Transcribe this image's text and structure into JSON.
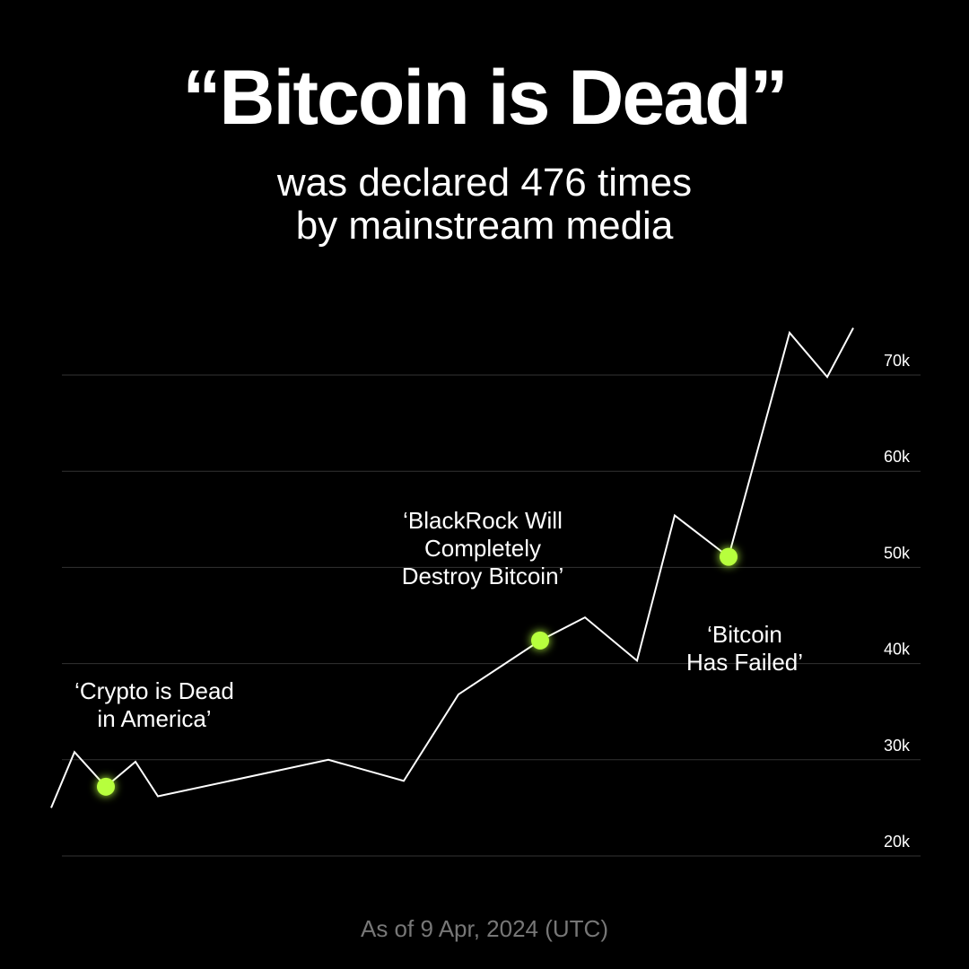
{
  "header": {
    "title": "“Bitcoin is Dead”",
    "subtitle_line1": "was declared 476 times",
    "subtitle_line2": "by mainstream media"
  },
  "footer": {
    "note": "As of 9 Apr, 2024 (UTC)"
  },
  "colors": {
    "background": "#000000",
    "line": "#ffffff",
    "marker": "#b7ff3c",
    "grid": "#333333",
    "footer": "#777777"
  },
  "chart_data": {
    "type": "line",
    "title": "",
    "xlabel": "",
    "ylabel": "",
    "ylim": [
      20000,
      75000
    ],
    "y_ticks": [
      20000,
      30000,
      40000,
      50000,
      60000,
      70000
    ],
    "y_tick_labels": [
      "20k",
      "30k",
      "40k",
      "50k",
      "60k",
      "70k"
    ],
    "grid": true,
    "series": [
      {
        "values": [
          25000,
          30800,
          27200,
          29800,
          26200,
          30000,
          27800,
          36800,
          42400,
          44800,
          40300,
          55400,
          51100,
          74400,
          69800,
          74900
        ]
      }
    ],
    "annotations": [
      {
        "index": 2,
        "lines": [
          "‘Crypto is Dead",
          "in America’"
        ],
        "position": "above"
      },
      {
        "index": 8,
        "lines": [
          "‘BlackRock Will",
          "Completely",
          "Destroy Bitcoin’"
        ],
        "position": "above"
      },
      {
        "index": 12,
        "lines": [
          "‘Bitcoin",
          "Has Failed’"
        ],
        "position": "below"
      }
    ]
  }
}
